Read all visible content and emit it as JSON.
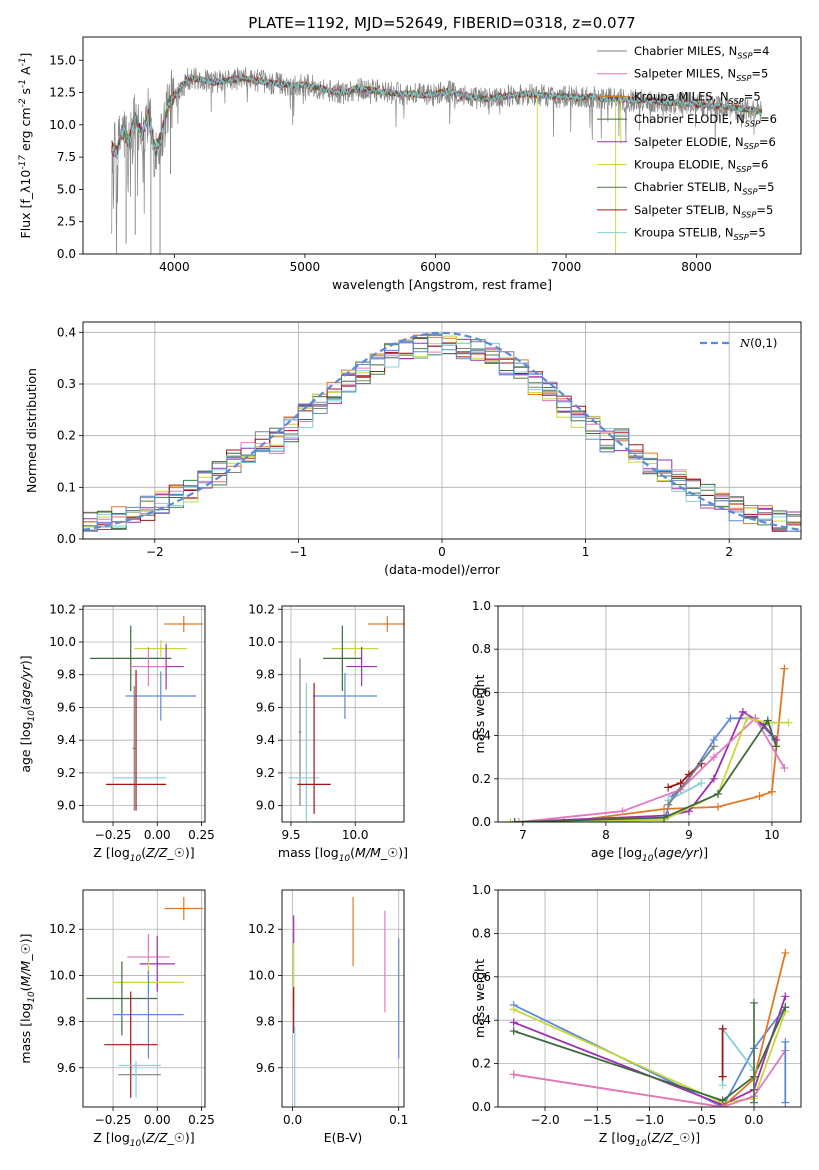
{
  "figure": {
    "title": "PLATE=1192, MJD=52649, FIBERID=0318, z=0.077"
  },
  "model_styles": [
    {
      "legend": "Chabrier MILES, N$_{SSP}$=4",
      "color": "#808080"
    },
    {
      "legend": "Salpeter MILES, N$_{SSP}$=5",
      "color": "#e377c2"
    },
    {
      "legend": "Kroupa MILES, N$_{SSP}$=5",
      "color": "#e07a24"
    },
    {
      "legend": "Chabrier ELODIE, N$_{SSP}$=6",
      "color": "#3d6b3d"
    },
    {
      "legend": "Salpeter ELODIE, N$_{SSP}$=6",
      "color": "#9b30b0"
    },
    {
      "legend": "Kroupa ELODIE, N$_{SSP}$=6",
      "color": "#c8d83a"
    },
    {
      "legend": "Chabrier STELIB, N$_{SSP}$=5",
      "color": "#4d7a4d"
    },
    {
      "legend": "Salpeter STELIB, N$_{SSP}$=5",
      "color": "#a31515"
    },
    {
      "legend": "Kroupa STELIB, N$_{SSP}$=5",
      "color": "#86d0d8"
    },
    {
      "legend": "",
      "color": "#5b8bd8"
    }
  ],
  "chart_data": [
    {
      "id": "spectrum",
      "type": "line",
      "xlabel": "wavelength [Angstrom, rest frame]",
      "ylabel": "Flux [f$_\\lambda$10$^{-17}$ erg cm$^{-2}$ s$^{-1}$ A$^{-1}$]",
      "xlim": [
        3300,
        8800
      ],
      "ylim": [
        0,
        16.8
      ],
      "xticks": [
        4000,
        5000,
        6000,
        7000,
        8000
      ],
      "yticks": [
        0.0,
        2.5,
        5.0,
        7.5,
        10.0,
        12.5,
        15.0
      ],
      "grid": false,
      "legend_position": "right",
      "data_range": [
        3520,
        8500
      ],
      "data_shape": {
        "x": [
          3520,
          3560,
          3600,
          3650,
          3700,
          3750,
          3800,
          3850,
          3900,
          3950,
          4000,
          4050,
          4100,
          4200,
          4300,
          4400,
          4500,
          4600,
          4700,
          4800,
          4900,
          5000,
          5100,
          5200,
          5300,
          5400,
          5500,
          5600,
          5700,
          5800,
          5900,
          6000,
          6100,
          6200,
          6300,
          6400,
          6500,
          6600,
          6700,
          6800,
          6900,
          7000,
          7100,
          7200,
          7300,
          7400,
          7500,
          7600,
          7700,
          7800,
          7900,
          8000,
          8100,
          8200,
          8300,
          8400,
          8500
        ],
        "y": [
          8.2,
          7.8,
          9.5,
          8.8,
          10.5,
          9.2,
          10.8,
          8.0,
          9.0,
          11.5,
          12.2,
          13.0,
          13.6,
          13.5,
          13.3,
          13.4,
          13.6,
          13.5,
          13.3,
          13.2,
          13.0,
          13.1,
          12.9,
          12.6,
          12.5,
          12.8,
          12.7,
          12.5,
          12.4,
          12.4,
          12.3,
          12.4,
          12.6,
          12.3,
          12.1,
          12.0,
          12.2,
          12.3,
          12.4,
          12.3,
          12.2,
          12.2,
          12.1,
          12.2,
          12.0,
          12.0,
          11.9,
          11.9,
          11.8,
          11.7,
          11.7,
          11.6,
          11.5,
          11.4,
          11.3,
          11.2,
          11.0
        ]
      }
    },
    {
      "id": "residuals",
      "type": "step",
      "xlabel": "(data-model)/error",
      "ylabel": "Normed distribution",
      "xlim": [
        -2.5,
        2.5
      ],
      "ylim": [
        0,
        0.42
      ],
      "xticks": [
        -2,
        -1,
        0,
        1,
        2
      ],
      "yticks": [
        0.0,
        0.1,
        0.2,
        0.3,
        0.4
      ],
      "grid": true,
      "legend": {
        "label": "$\\mathcal{N}(0,1)$",
        "position": "top-right",
        "color": "#5b8bd8"
      },
      "bin_width": 0.1,
      "bin_start": -2.5
    },
    {
      "id": "age_vs_Z",
      "type": "errorbar",
      "xlabel": "Z [log$_{10}$($Z/Z_\\odot$)]",
      "ylabel": "age  [log$_{10}$($age/yr$)]",
      "xlim": [
        -0.42,
        0.27
      ],
      "ylim": [
        8.9,
        10.22
      ],
      "xticks": [
        -0.25,
        0.0,
        0.25
      ],
      "yticks": [
        9.0,
        9.2,
        9.4,
        9.6,
        9.8,
        10.0,
        10.2
      ],
      "grid": true,
      "points": [
        {
          "model": 2,
          "x": 0.15,
          "xerr": 0.11,
          "y": 10.11,
          "yerr": 0.05
        },
        {
          "model": 5,
          "x": 0.02,
          "xerr": 0.15,
          "y": 9.96,
          "yerr": 0.05
        },
        {
          "model": 3,
          "x": -0.15,
          "xerr": 0.23,
          "y": 9.9,
          "yerr": 0.2
        },
        {
          "model": 4,
          "x": 0.05,
          "xerr": 0.1,
          "y": 9.85,
          "yerr": 0.14
        },
        {
          "model": 1,
          "x": -0.05,
          "xerr": 0.1,
          "y": 9.85,
          "yerr": 0.12
        },
        {
          "model": 9,
          "x": 0.02,
          "xerr": 0.2,
          "y": 9.67,
          "yerr": 0.15
        },
        {
          "model": 0,
          "x": -0.13,
          "xerr": 0.01,
          "y": 9.35,
          "yerr": 0.38
        },
        {
          "model": 8,
          "x": -0.1,
          "xerr": 0.15,
          "y": 9.17,
          "yerr": 0.0
        },
        {
          "model": 7,
          "x": -0.12,
          "xerr": 0.17,
          "y": 9.13,
          "yerr": 0.0
        },
        {
          "model": 7,
          "x": -0.12,
          "xerr": 0.0,
          "y": 9.4,
          "yerr": 0.43
        }
      ]
    },
    {
      "id": "age_vs_mass",
      "type": "errorbar",
      "xlabel": "mass [log$_{10}$($M/M_\\odot$)]",
      "ylabel": "",
      "xlim": [
        9.43,
        10.38
      ],
      "ylim": [
        8.9,
        10.22
      ],
      "xticks": [
        9.5,
        10.0
      ],
      "yticks": [
        9.0,
        9.2,
        9.4,
        9.6,
        9.8,
        10.0,
        10.2
      ],
      "grid": true,
      "points": [
        {
          "model": 2,
          "x": 10.25,
          "xerr": 0.15,
          "y": 10.11,
          "yerr": 0.05
        },
        {
          "model": 5,
          "x": 10.0,
          "xerr": 0.18,
          "y": 9.96,
          "yerr": 0.05
        },
        {
          "model": 3,
          "x": 9.9,
          "xerr": 0.15,
          "y": 9.9,
          "yerr": 0.2
        },
        {
          "model": 4,
          "x": 10.05,
          "xerr": 0.12,
          "y": 9.85,
          "yerr": 0.12
        },
        {
          "model": 9,
          "x": 9.92,
          "xerr": 0.25,
          "y": 9.67,
          "yerr": 0.14
        },
        {
          "model": 0,
          "x": 9.57,
          "xerr": 0.01,
          "y": 9.45,
          "yerr": 0.45
        },
        {
          "model": 8,
          "x": 9.6,
          "xerr": 0.12,
          "y": 9.17,
          "yerr": 0.0
        },
        {
          "model": 8,
          "x": 9.62,
          "xerr": 0.0,
          "y": 9.3,
          "yerr": 0.45
        },
        {
          "model": 7,
          "x": 9.68,
          "xerr": 0.13,
          "y": 9.13,
          "yerr": 0.0
        },
        {
          "model": 7,
          "x": 9.68,
          "xerr": 0.0,
          "y": 9.35,
          "yerr": 0.4
        }
      ]
    },
    {
      "id": "weight_vs_age",
      "type": "line",
      "xlabel": "age  [log$_{10}$($age/yr$)]",
      "ylabel": "mass weight",
      "xlim": [
        6.7,
        10.35
      ],
      "ylim": [
        0,
        1.0
      ],
      "xticks": [
        7,
        8,
        9,
        10
      ],
      "yticks": [
        0.0,
        0.2,
        0.4,
        0.6,
        0.8,
        1.0
      ],
      "grid": true,
      "series": [
        {
          "model": 2,
          "x": [
            6.9,
            7.5,
            8.7,
            9.35,
            9.85,
            10.0,
            10.15
          ],
          "y": [
            0.0,
            0.0,
            0.06,
            0.07,
            0.12,
            0.14,
            0.71
          ]
        },
        {
          "model": 9,
          "x": [
            6.9,
            8.7,
            8.8,
            9.0,
            9.3,
            9.5,
            9.8,
            10.0
          ],
          "y": [
            0.0,
            0.01,
            0.12,
            0.2,
            0.38,
            0.48,
            0.48,
            0.4
          ]
        },
        {
          "model": 4,
          "x": [
            6.9,
            8.75,
            9.0,
            9.3,
            9.65,
            9.9,
            10.05
          ],
          "y": [
            0.0,
            0.03,
            0.05,
            0.2,
            0.51,
            0.45,
            0.38
          ]
        },
        {
          "model": 1,
          "x": [
            6.95,
            8.2,
            8.9,
            9.3,
            9.8,
            10.15
          ],
          "y": [
            0.0,
            0.05,
            0.15,
            0.3,
            0.48,
            0.25
          ]
        },
        {
          "model": 5,
          "x": [
            6.85,
            8.7,
            9.35,
            9.7,
            9.95,
            10.2
          ],
          "y": [
            0.0,
            0.01,
            0.13,
            0.48,
            0.46,
            0.46
          ]
        },
        {
          "model": 3,
          "x": [
            6.9,
            8.7,
            9.35,
            9.95,
            10.05
          ],
          "y": [
            0.0,
            0.02,
            0.13,
            0.47,
            0.35
          ]
        },
        {
          "model": 7,
          "x": [
            8.75,
            8.9,
            9.0,
            9.15
          ],
          "y": [
            0.16,
            0.18,
            0.22,
            0.27
          ]
        },
        {
          "model": 8,
          "x": [
            8.75,
            9.15
          ],
          "y": [
            0.1,
            0.18
          ]
        },
        {
          "model": 0,
          "x": [
            8.75,
            9.3
          ],
          "y": [
            0.08,
            0.35
          ]
        }
      ]
    },
    {
      "id": "mass_vs_Z",
      "type": "errorbar",
      "xlabel": "Z [log$_{10}$($Z/Z_\\odot$)]",
      "ylabel": "mass [log$_{10}$($M/M_\\odot$)]",
      "xlim": [
        -0.42,
        0.27
      ],
      "ylim": [
        9.43,
        10.37
      ],
      "xticks": [
        -0.25,
        0.0,
        0.25
      ],
      "yticks": [
        9.6,
        9.8,
        10.0,
        10.2
      ],
      "grid": true,
      "points": [
        {
          "model": 2,
          "x": 0.15,
          "xerr": 0.11,
          "y": 10.29,
          "yerr": 0.05
        },
        {
          "model": 1,
          "x": -0.05,
          "xerr": 0.12,
          "y": 10.08,
          "yerr": 0.1
        },
        {
          "model": 4,
          "x": 0.0,
          "xerr": 0.1,
          "y": 10.05,
          "yerr": 0.12
        },
        {
          "model": 5,
          "x": -0.05,
          "xerr": 0.2,
          "y": 9.97,
          "yerr": 0.1
        },
        {
          "model": 3,
          "x": -0.2,
          "xerr": 0.2,
          "y": 9.9,
          "yerr": 0.16
        },
        {
          "model": 9,
          "x": -0.05,
          "xerr": 0.2,
          "y": 9.83,
          "yerr": 0.19
        },
        {
          "model": 7,
          "x": -0.15,
          "xerr": 0.15,
          "y": 9.7,
          "yerr": 0.23
        },
        {
          "model": 8,
          "x": -0.1,
          "xerr": 0.12,
          "y": 9.61,
          "yerr": 0.0
        },
        {
          "model": 0,
          "x": -0.1,
          "xerr": 0.12,
          "y": 9.57,
          "yerr": 0.0
        },
        {
          "model": 8,
          "x": -0.12,
          "xerr": 0.0,
          "y": 9.55,
          "yerr": 0.08
        }
      ]
    },
    {
      "id": "mass_vs_EBV",
      "type": "errorbar",
      "xlabel": "E(B-V)",
      "ylabel": "",
      "xlim": [
        -0.01,
        0.105
      ],
      "ylim": [
        9.43,
        10.37
      ],
      "xticks": [
        0.0,
        0.1
      ],
      "yticks": [
        9.6,
        9.8,
        10.0,
        10.2
      ],
      "grid": true,
      "points": [
        {
          "model": 2,
          "x": 0.057,
          "xerr": 0.0,
          "y": 10.19,
          "yerr": 0.15
        },
        {
          "model": 1,
          "x": 0.087,
          "xerr": 0.0,
          "y": 10.06,
          "yerr": 0.22
        },
        {
          "model": 9,
          "x": 0.1,
          "xerr": 0.0,
          "y": 9.9,
          "yerr": 0.26
        },
        {
          "model": 4,
          "x": 0.001,
          "xerr": 0.0,
          "y": 10.2,
          "yerr": 0.06
        },
        {
          "model": 5,
          "x": 0.001,
          "xerr": 0.0,
          "y": 10.0,
          "yerr": 0.14
        },
        {
          "model": 7,
          "x": 0.001,
          "xerr": 0.0,
          "y": 9.85,
          "yerr": 0.1
        },
        {
          "model": 8,
          "x": 0.002,
          "xerr": 0.0,
          "y": 9.6,
          "yerr": 0.18
        }
      ]
    },
    {
      "id": "weight_vs_Z",
      "type": "line",
      "xlabel": "Z [log$_{10}$($Z/Z_\\odot$)]",
      "ylabel": "mass weight",
      "xlim": [
        -2.45,
        0.45
      ],
      "ylim": [
        0,
        1.0
      ],
      "xticks": [
        -2.0,
        -1.5,
        -1.0,
        -0.5,
        0.0
      ],
      "yticks": [
        0.0,
        0.2,
        0.4,
        0.6,
        0.8,
        1.0
      ],
      "grid": true,
      "series": [
        {
          "model": 9,
          "x": [
            -2.3,
            -0.3,
            0.0,
            0.3
          ],
          "y": [
            0.47,
            0.0,
            0.27,
            0.46
          ]
        },
        {
          "model": 5,
          "x": [
            -2.3,
            -0.3,
            0.0,
            0.3
          ],
          "y": [
            0.45,
            0.02,
            0.04,
            0.44
          ]
        },
        {
          "model": 4,
          "x": [
            -2.3,
            -0.3,
            0.0,
            0.3
          ],
          "y": [
            0.39,
            0.01,
            0.08,
            0.51
          ]
        },
        {
          "model": 3,
          "x": [
            -2.3,
            -0.3,
            0.0,
            0.3
          ],
          "y": [
            0.35,
            0.03,
            0.14,
            0.46
          ]
        },
        {
          "model": 2,
          "x": [
            -2.3,
            -0.3,
            0.0,
            0.3
          ],
          "y": [
            0.15,
            0.0,
            0.13,
            0.71
          ]
        },
        {
          "model": 1,
          "x": [
            -2.3,
            -0.3,
            0.0,
            0.3
          ],
          "y": [
            0.15,
            0.0,
            0.05,
            0.26
          ]
        },
        {
          "model": 8,
          "x": [
            -0.3,
            -0.3,
            0.0
          ],
          "y": [
            0.1,
            0.36,
            0.17
          ]
        },
        {
          "model": 7,
          "x": [
            -0.3,
            -0.3
          ],
          "y": [
            0.14,
            0.36
          ]
        },
        {
          "model": 6,
          "x": [
            0.0,
            0.0
          ],
          "y": [
            0.02,
            0.48
          ]
        },
        {
          "model": 9,
          "x": [
            0.3,
            0.3
          ],
          "y": [
            0.02,
            0.3
          ]
        }
      ]
    }
  ]
}
